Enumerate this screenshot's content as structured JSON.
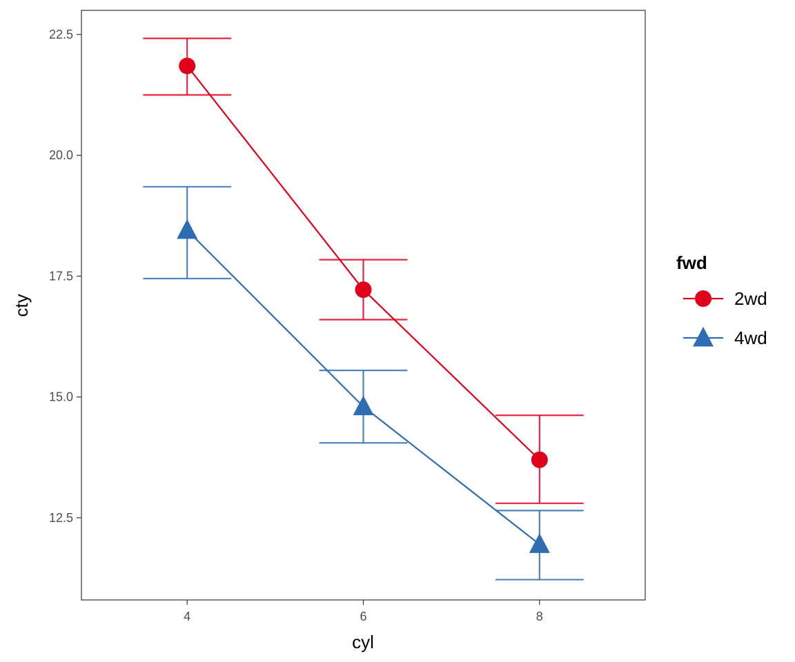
{
  "chart_data": {
    "type": "line",
    "xlabel": "cyl",
    "ylabel": "cty",
    "x": [
      4,
      6,
      8
    ],
    "x_ticks": [
      "4",
      "6",
      "8"
    ],
    "y_ticks": [
      "12.5",
      "15.0",
      "17.5",
      "20.0",
      "22.5"
    ],
    "y_tick_values": [
      12.5,
      15.0,
      17.5,
      20.0,
      22.5
    ],
    "xlim": [
      2.8,
      9.2
    ],
    "ylim": [
      10.8,
      23.0
    ],
    "grid": false,
    "error_bars": true,
    "legend": {
      "title": "fwd",
      "placement": "right"
    },
    "series": [
      {
        "name": "2wd",
        "color": "#E0001B",
        "shape": "circle",
        "values": [
          21.85,
          17.22,
          13.7
        ],
        "lower": [
          21.25,
          16.6,
          12.8
        ],
        "upper": [
          22.42,
          17.84,
          14.62
        ]
      },
      {
        "name": "4wd",
        "color": "#2E6DB4",
        "shape": "triangle",
        "values": [
          18.45,
          14.8,
          11.95
        ],
        "lower": [
          17.45,
          14.05,
          11.22
        ],
        "upper": [
          19.35,
          15.55,
          12.65
        ]
      }
    ]
  }
}
